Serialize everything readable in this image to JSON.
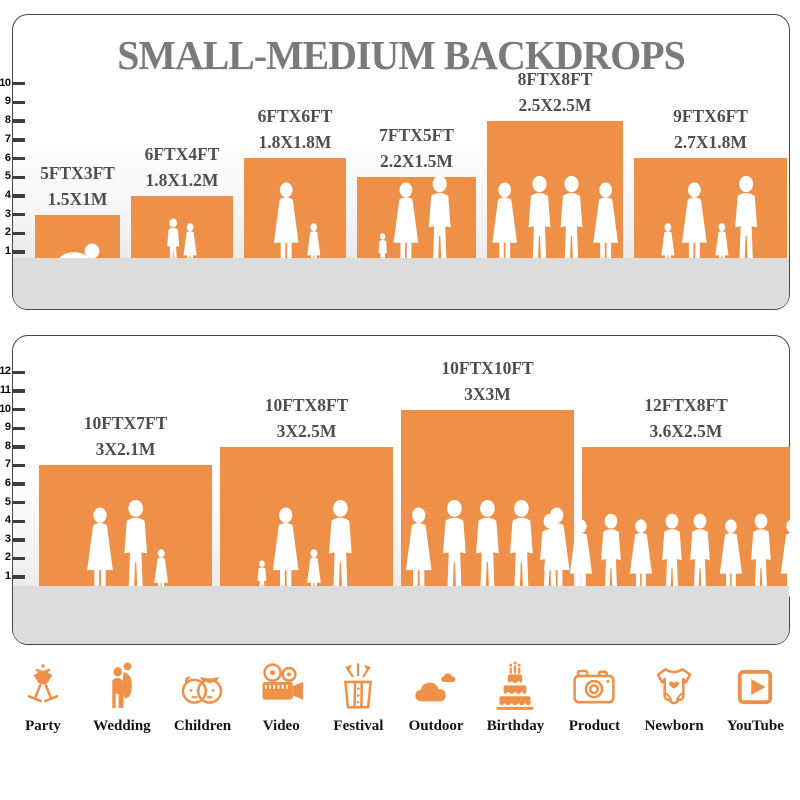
{
  "title": "SMALL-MEDIUM BACKDROPS",
  "accent_color": "#EF9048",
  "floor_color": "#dcdcdc",
  "title_color": "#7a7a7a",
  "label_color": "#4e4e4e",
  "chart_data": [
    {
      "type": "bar",
      "title": "SMALL-MEDIUM BACKDROPS",
      "categories": [
        "5FTX3FT",
        "6FTX4FT",
        "6FTX6FT",
        "7FTX5FT",
        "8FTX8FT",
        "9FTX6FT"
      ],
      "values": [
        3,
        4,
        6,
        5,
        8,
        6
      ],
      "bar_widths_ft": [
        5,
        6,
        6,
        7,
        8,
        9
      ],
      "metric_labels": [
        "1.5X1M",
        "1.8X1.2M",
        "1.8X1.8M",
        "2.2X1.5M",
        "2.5X2.5M",
        "2.7X1.8M"
      ],
      "ylim": [
        0,
        10
      ],
      "tick_labels": [
        "1",
        "2",
        "3",
        "4",
        "5",
        "6",
        "7",
        "8",
        "9",
        "10"
      ],
      "grid": false,
      "legend": false,
      "bar_color": "#EF9048",
      "figures": [
        [
          "baby"
        ],
        [
          "boy",
          "girl"
        ],
        [
          "woman",
          "girl"
        ],
        [
          "toddler",
          "woman",
          "man"
        ],
        [
          "woman",
          "man",
          "man",
          "woman"
        ],
        [
          "girl",
          "woman",
          "girl",
          "man"
        ]
      ],
      "figure_scales": [
        1,
        1,
        1,
        1,
        1,
        1
      ]
    },
    {
      "type": "bar",
      "title": "",
      "categories": [
        "10FTX7FT",
        "10FTX8FT",
        "10FTX10FT",
        "12FTX8FT"
      ],
      "values": [
        7,
        8,
        10,
        8
      ],
      "bar_widths_ft": [
        10,
        10,
        10,
        12
      ],
      "metric_labels": [
        "3X2.1M",
        "3X2.5M",
        "3X3M",
        "3.6X2.5M"
      ],
      "ylim": [
        0,
        12
      ],
      "tick_labels": [
        "1",
        "2",
        "3",
        "4",
        "5",
        "6",
        "7",
        "8",
        "9",
        "10",
        "11",
        "12"
      ],
      "grid": false,
      "legend": false,
      "bar_color": "#EF9048",
      "figures": [
        [
          "woman",
          "man",
          "girl"
        ],
        [
          "toddler",
          "woman",
          "girl",
          "man"
        ],
        [
          "woman",
          "man",
          "man",
          "man",
          "woman"
        ],
        [
          "man",
          "woman",
          "man",
          "woman",
          "man",
          "man",
          "woman",
          "man",
          "woman",
          "man"
        ]
      ],
      "figure_scales": [
        1.04,
        1.04,
        1.04,
        0.9
      ]
    }
  ],
  "categories": [
    {
      "label": "Party",
      "icon": "party-icon"
    },
    {
      "label": "Wedding",
      "icon": "wedding-icon"
    },
    {
      "label": "Children",
      "icon": "children-icon"
    },
    {
      "label": "Video",
      "icon": "video-icon"
    },
    {
      "label": "Festival",
      "icon": "festival-icon"
    },
    {
      "label": "Outdoor",
      "icon": "outdoor-icon"
    },
    {
      "label": "Birthday",
      "icon": "birthday-icon"
    },
    {
      "label": "Product",
      "icon": "product-icon"
    },
    {
      "label": "Newborn",
      "icon": "newborn-icon"
    },
    {
      "label": "YouTube",
      "icon": "youtube-icon"
    }
  ]
}
